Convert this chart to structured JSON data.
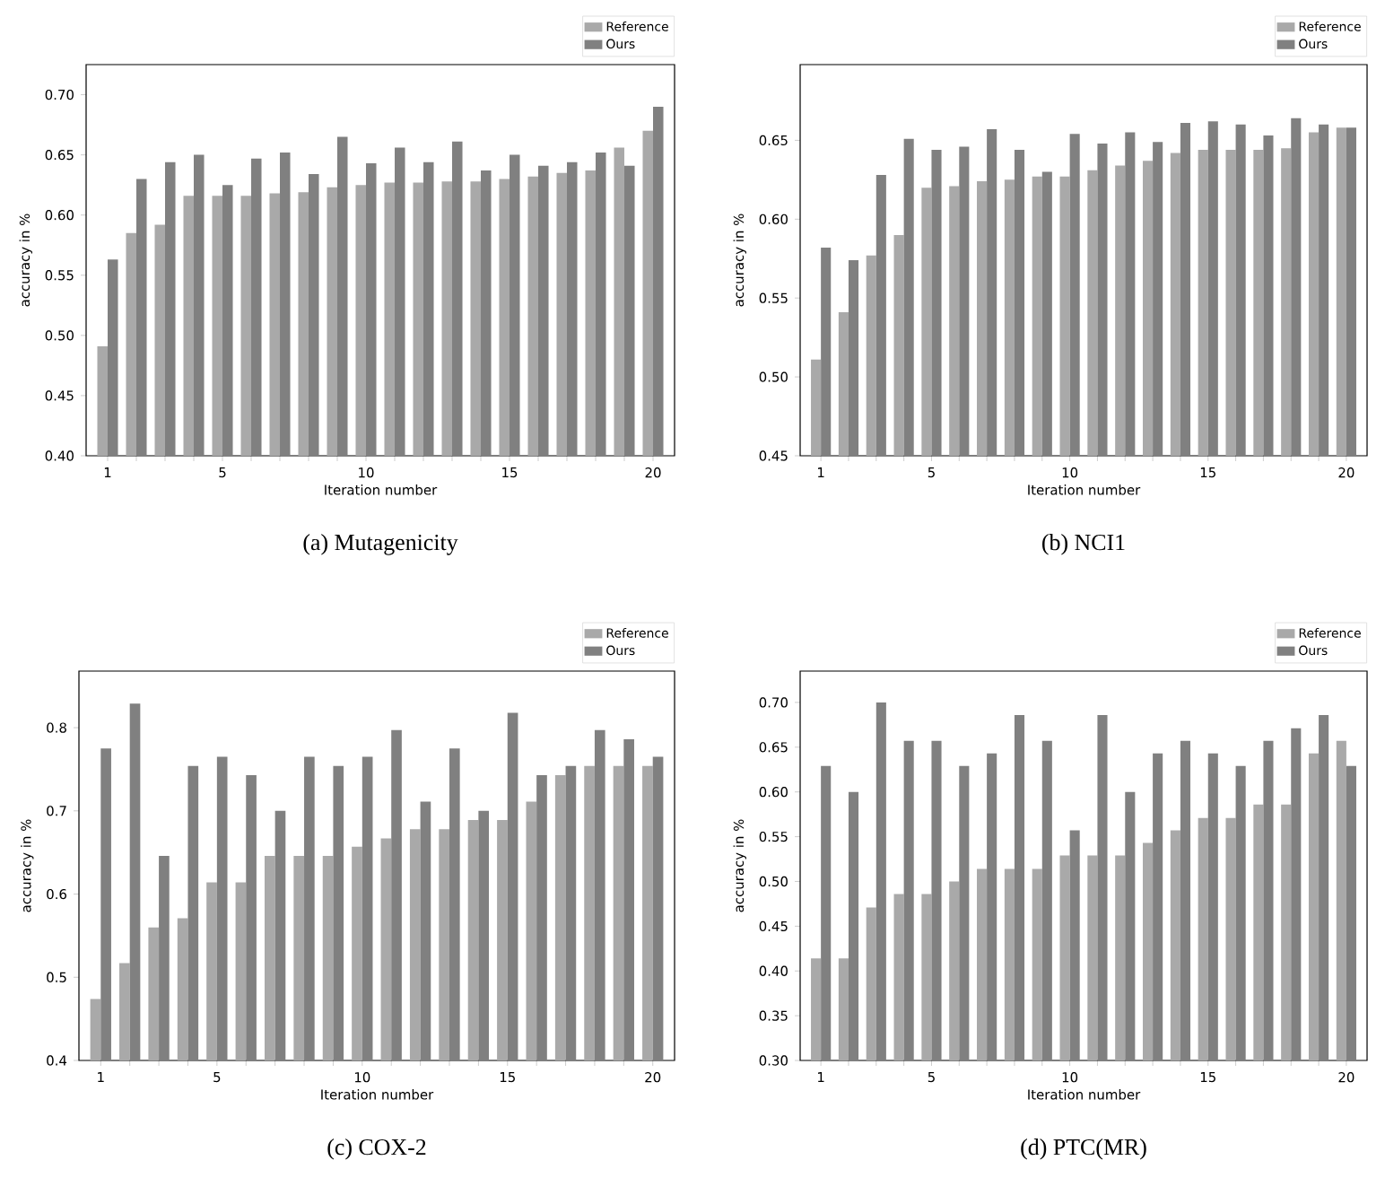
{
  "chart_data": [
    {
      "type": "bar",
      "title": "(a) Mutagenicity",
      "xlabel": "Iteration number",
      "ylabel": "accuracy in %",
      "categories": [
        "1",
        null,
        null,
        null,
        "5",
        null,
        null,
        null,
        null,
        "10",
        null,
        null,
        null,
        null,
        "15",
        null,
        null,
        null,
        null,
        "20"
      ],
      "series": [
        {
          "name": "Reference",
          "color": "#a9a9a9",
          "values": [
            0.491,
            0.585,
            0.592,
            0.616,
            0.616,
            0.616,
            0.618,
            0.619,
            0.623,
            0.625,
            0.627,
            0.627,
            0.628,
            0.628,
            0.63,
            0.632,
            0.635,
            0.637,
            0.656,
            0.67
          ]
        },
        {
          "name": "Ours",
          "color": "#808080",
          "values": [
            0.563,
            0.63,
            0.644,
            0.65,
            0.625,
            0.647,
            0.652,
            0.634,
            0.665,
            0.643,
            0.656,
            0.644,
            0.661,
            0.637,
            0.65,
            0.641,
            0.644,
            0.652,
            0.641,
            0.69
          ]
        }
      ],
      "ylim": [
        0.4,
        0.725
      ],
      "yticks": [
        {
          "value": 0.4,
          "label": "0.40"
        },
        {
          "value": 0.45,
          "label": "0.45"
        },
        {
          "value": 0.5,
          "label": "0.50"
        },
        {
          "value": 0.55,
          "label": "0.55"
        },
        {
          "value": 0.6,
          "label": "0.60"
        },
        {
          "value": 0.65,
          "label": "0.65"
        },
        {
          "value": 0.7,
          "label": "0.70"
        }
      ],
      "legend": "top right"
    },
    {
      "type": "bar",
      "title": "(b) NCI1",
      "xlabel": "Iteration number",
      "ylabel": "accuracy in %",
      "categories": [
        "1",
        null,
        null,
        null,
        "5",
        null,
        null,
        null,
        null,
        "10",
        null,
        null,
        null,
        null,
        "15",
        null,
        null,
        null,
        null,
        "20"
      ],
      "series": [
        {
          "name": "Reference",
          "color": "#a9a9a9",
          "values": [
            0.511,
            0.541,
            0.577,
            0.59,
            0.62,
            0.621,
            0.624,
            0.625,
            0.627,
            0.627,
            0.631,
            0.634,
            0.637,
            0.642,
            0.644,
            0.644,
            0.644,
            0.645,
            0.655,
            0.658
          ]
        },
        {
          "name": "Ours",
          "color": "#808080",
          "values": [
            0.582,
            0.574,
            0.628,
            0.651,
            0.644,
            0.646,
            0.657,
            0.644,
            0.63,
            0.654,
            0.648,
            0.655,
            0.649,
            0.661,
            0.662,
            0.66,
            0.653,
            0.664,
            0.66,
            0.658
          ]
        }
      ],
      "ylim": [
        0.45,
        0.698
      ],
      "yticks": [
        {
          "value": 0.45,
          "label": "0.45"
        },
        {
          "value": 0.5,
          "label": "0.50"
        },
        {
          "value": 0.55,
          "label": "0.55"
        },
        {
          "value": 0.6,
          "label": "0.60"
        },
        {
          "value": 0.65,
          "label": "0.65"
        }
      ],
      "legend": "top right"
    },
    {
      "type": "bar",
      "title": "(c) COX-2",
      "xlabel": "Iteration number",
      "ylabel": "accuracy in %",
      "categories": [
        "1",
        null,
        null,
        null,
        "5",
        null,
        null,
        null,
        null,
        "10",
        null,
        null,
        null,
        null,
        "15",
        null,
        null,
        null,
        null,
        "20"
      ],
      "series": [
        {
          "name": "Reference",
          "color": "#a9a9a9",
          "values": [
            0.474,
            0.517,
            0.56,
            0.571,
            0.614,
            0.614,
            0.646,
            0.646,
            0.646,
            0.657,
            0.667,
            0.678,
            0.678,
            0.689,
            0.689,
            0.711,
            0.743,
            0.754,
            0.754,
            0.754
          ]
        },
        {
          "name": "Ours",
          "color": "#808080",
          "values": [
            0.775,
            0.829,
            0.646,
            0.754,
            0.765,
            0.743,
            0.7,
            0.765,
            0.754,
            0.765,
            0.797,
            0.711,
            0.775,
            0.7,
            0.818,
            0.743,
            0.754,
            0.797,
            0.786,
            0.765
          ]
        }
      ],
      "ylim": [
        0.4,
        0.868
      ],
      "yticks": [
        0.4,
        0.5,
        0.6,
        0.7,
        0.8
      ],
      "legend": "top right"
    },
    {
      "type": "bar",
      "title": "(d) PTC(MR)",
      "xlabel": "Iteration number",
      "ylabel": "accuracy in %",
      "categories": [
        "1",
        null,
        null,
        null,
        "5",
        null,
        null,
        null,
        null,
        "10",
        null,
        null,
        null,
        null,
        "15",
        null,
        null,
        null,
        null,
        "20"
      ],
      "series": [
        {
          "name": "Reference",
          "color": "#a9a9a9",
          "values": [
            0.414,
            0.414,
            0.471,
            0.486,
            0.486,
            0.5,
            0.514,
            0.514,
            0.514,
            0.529,
            0.529,
            0.529,
            0.543,
            0.557,
            0.571,
            0.571,
            0.586,
            0.586,
            0.643,
            0.657
          ]
        },
        {
          "name": "Ours",
          "color": "#808080",
          "values": [
            0.629,
            0.6,
            0.7,
            0.657,
            0.657,
            0.629,
            0.643,
            0.686,
            0.657,
            0.557,
            0.686,
            0.6,
            0.643,
            0.657,
            0.643,
            0.629,
            0.657,
            0.671,
            0.686,
            0.629
          ]
        }
      ],
      "ylim": [
        0.3,
        0.735
      ],
      "yticks": [
        {
          "value": 0.3,
          "label": "0.30"
        },
        {
          "value": 0.35,
          "label": "0.35"
        },
        {
          "value": 0.4,
          "label": "0.40"
        },
        {
          "value": 0.45,
          "label": "0.45"
        },
        {
          "value": 0.5,
          "label": "0.50"
        },
        {
          "value": 0.55,
          "label": "0.55"
        },
        {
          "value": 0.6,
          "label": "0.60"
        },
        {
          "value": 0.65,
          "label": "0.65"
        },
        {
          "value": 0.7,
          "label": "0.70"
        }
      ],
      "legend": "top right"
    }
  ]
}
